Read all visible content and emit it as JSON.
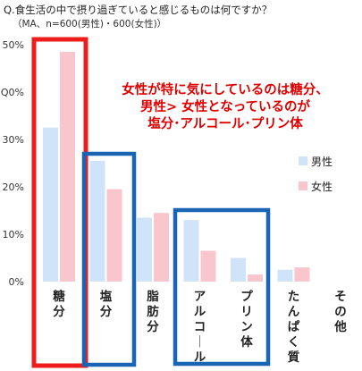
{
  "question": {
    "title": "Q.食生活の中で摂り過ぎていると感じるものは何ですか？",
    "note": "（MA、n=600(男性)・600(女性)）"
  },
  "callout": {
    "line1": "女性が特に気にしているのは糖分、",
    "line2": "男性> 女性となっているのが",
    "line3": "塩分･アルコール･プリン体"
  },
  "colors": {
    "male": "#cfe4f8",
    "female": "#f8c6cc",
    "highlight_red": "#ee1c1c",
    "highlight_blue": "#1a64b4",
    "callout_text": "#e00000"
  },
  "chart_data": {
    "type": "bar",
    "categories": [
      "糖分",
      "塩分",
      "脂肪分",
      "アルコール",
      "プリン体",
      "たんぱく質",
      "その他"
    ],
    "series": [
      {
        "name": "男性",
        "values": [
          32.5,
          25.5,
          13.5,
          13.0,
          5.0,
          2.5,
          0
        ]
      },
      {
        "name": "女性",
        "values": [
          48.5,
          19.5,
          14.5,
          6.5,
          1.5,
          3.0,
          0
        ]
      }
    ],
    "yticks": [
      "0%",
      "10%",
      "20%",
      "30%",
      "Q0%",
      "50%"
    ],
    "ylim": [
      0,
      50
    ],
    "legend_position": "right",
    "grid": false,
    "highlights": [
      {
        "categories": [
          "糖分"
        ],
        "color": "red"
      },
      {
        "categories": [
          "塩分"
        ],
        "color": "blue"
      },
      {
        "categories": [
          "アルコール",
          "プリン体"
        ],
        "color": "blue"
      }
    ]
  }
}
